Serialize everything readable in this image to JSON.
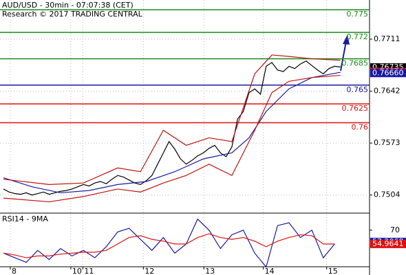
{
  "chart_data": {
    "type": "line",
    "title": "AUD/USD - 30min - 07:07:38 (CET)",
    "subtitle": "Research © 2017 TRADING CENTRAL",
    "xlim": [
      -0.6,
      64.1
    ],
    "xticks": [
      {
        "value": 1.2,
        "label": "8"
      },
      {
        "value": 11.8,
        "label": "10"
      },
      {
        "value": 13.9,
        "label": "11"
      },
      {
        "value": 24.5,
        "label": "12"
      },
      {
        "value": 35.1,
        "label": "13"
      },
      {
        "value": 45.5,
        "label": "14"
      },
      {
        "value": 56.6,
        "label": "15"
      }
    ],
    "ylim": [
      0.748,
      0.7763
    ],
    "yticks": [
      0.7711,
      0.7642,
      0.7573,
      0.7504
    ],
    "grid": true,
    "series": [
      {
        "name": "Price",
        "color": "#000000",
        "values": [
          0.7512,
          0.7508,
          0.7506,
          0.7505,
          0.7507,
          0.7504,
          0.7506,
          0.7508,
          0.7505,
          0.7507,
          0.7509,
          0.751,
          0.7512,
          0.7515,
          0.7518,
          0.7516,
          0.752,
          0.7522,
          0.7519,
          0.7525,
          0.753,
          0.7528,
          0.7524,
          0.752,
          0.7518,
          0.7523,
          0.753,
          0.7545,
          0.756,
          0.7575,
          0.7565,
          0.7552,
          0.7545,
          0.755,
          0.7556,
          0.756,
          0.7566,
          0.757,
          0.756,
          0.7555,
          0.7568,
          0.7605,
          0.7615,
          0.764,
          0.7645,
          0.7638,
          0.7675,
          0.768,
          0.767,
          0.7668,
          0.7675,
          0.7672,
          0.7678,
          0.7682,
          0.7676,
          0.767,
          0.7665,
          0.7672,
          0.7675,
          0.7674
        ]
      },
      {
        "name": "MA",
        "color": "#1a1aa0",
        "x": [
          0,
          5,
          10,
          15,
          20,
          25,
          30,
          35,
          40,
          43,
          46,
          50,
          54,
          59
        ],
        "values": [
          0.7527,
          0.7515,
          0.7507,
          0.751,
          0.7518,
          0.7522,
          0.7535,
          0.7552,
          0.756,
          0.758,
          0.7615,
          0.7645,
          0.766,
          0.7667
        ]
      },
      {
        "name": "Upper band",
        "color": "#c01010",
        "x": [
          0,
          8,
          14,
          20,
          24,
          28,
          32,
          36,
          40,
          44,
          47,
          50,
          54,
          59
        ],
        "values": [
          0.7525,
          0.7518,
          0.752,
          0.754,
          0.7535,
          0.759,
          0.757,
          0.758,
          0.7575,
          0.7665,
          0.769,
          0.7688,
          0.7685,
          0.7683
        ]
      },
      {
        "name": "Lower band",
        "color": "#c01010",
        "x": [
          0,
          8,
          14,
          20,
          24,
          28,
          32,
          36,
          40,
          44,
          47,
          50,
          54,
          59
        ],
        "values": [
          0.75,
          0.7495,
          0.7502,
          0.7512,
          0.7508,
          0.752,
          0.753,
          0.7545,
          0.753,
          0.759,
          0.764,
          0.7655,
          0.766,
          0.7663
        ]
      }
    ],
    "levels": [
      {
        "value": 0.775,
        "color": "#1a8a1a"
      },
      {
        "value": 0.772,
        "color": "#1a8a1a"
      },
      {
        "value": 0.7685,
        "color": "#1a8a1a"
      },
      {
        "value": 0.765,
        "color": "#1a1aa0"
      },
      {
        "value": 0.7625,
        "color": "#dd1111"
      },
      {
        "value": 0.76,
        "color": "#dd1111"
      }
    ],
    "markers": [
      {
        "value": 0.76735,
        "color": "#000000"
      },
      {
        "value": 0.76676,
        "label": "0.76676",
        "color": "#dd1111"
      },
      {
        "value": 0.7666,
        "label": "0.76660",
        "color": "#1a1aa0"
      }
    ],
    "rsi": {
      "title": "RSI14 - 9MA",
      "ylim": [
        25,
        87
      ],
      "yticks": [
        70
      ],
      "x": [
        0,
        2,
        4,
        6,
        8,
        10,
        12,
        14,
        16,
        18,
        20,
        22,
        24,
        26,
        28,
        30,
        32,
        34,
        36,
        38,
        40,
        42,
        44,
        46,
        48,
        50,
        52,
        54,
        56,
        58
      ],
      "series": [
        {
          "name": "RSI",
          "color": "#1a1aa0",
          "values": [
            45,
            40,
            35,
            48,
            38,
            50,
            42,
            48,
            40,
            52,
            68,
            72,
            60,
            48,
            62,
            45,
            55,
            82,
            70,
            50,
            65,
            70,
            45,
            30,
            75,
            78,
            62,
            70,
            40,
            55
          ]
        },
        {
          "name": "9MA",
          "color": "#dd1111",
          "values": [
            45,
            43,
            40,
            42,
            42,
            44,
            45,
            46,
            46,
            48,
            55,
            62,
            64,
            60,
            58,
            55,
            55,
            62,
            66,
            62,
            60,
            62,
            58,
            52,
            58,
            62,
            65,
            64,
            55,
            55
          ]
        }
      ],
      "markers": [
        {
          "value": 57.2068,
          "color": "#1a1aa0"
        },
        {
          "value": 54.9641,
          "color": "#dd1111"
        }
      ]
    }
  }
}
